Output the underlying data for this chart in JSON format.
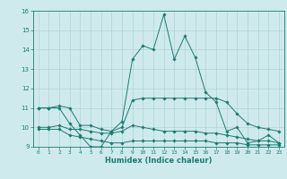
{
  "xlabel": "Humidex (Indice chaleur)",
  "bg_color": "#ceeaec",
  "grid_color": "#afd4d6",
  "line_color": "#1e7a70",
  "xlim": [
    -0.5,
    23.5
  ],
  "ylim": [
    9,
    16
  ],
  "xticks": [
    0,
    1,
    2,
    3,
    4,
    5,
    6,
    7,
    8,
    9,
    10,
    11,
    12,
    13,
    14,
    15,
    16,
    17,
    18,
    19,
    20,
    21,
    22,
    23
  ],
  "yticks": [
    9,
    10,
    11,
    12,
    13,
    14,
    15,
    16
  ],
  "series": [
    {
      "x": [
        0,
        1,
        2,
        3,
        4,
        5,
        6,
        7,
        8,
        9,
        10,
        11,
        12,
        13,
        14,
        15,
        16,
        17,
        18,
        19,
        20,
        21,
        22,
        23
      ],
      "y": [
        11.0,
        11.0,
        11.0,
        10.2,
        9.6,
        9.0,
        9.0,
        9.8,
        10.3,
        13.5,
        14.2,
        14.0,
        15.8,
        13.5,
        14.7,
        13.6,
        11.8,
        11.3,
        9.8,
        10.0,
        9.2,
        9.3,
        9.6,
        9.2
      ]
    },
    {
      "x": [
        0,
        1,
        2,
        3,
        4,
        5,
        6,
        7,
        8,
        9,
        10,
        11,
        12,
        13,
        14,
        15,
        16,
        17,
        18,
        19,
        20,
        21,
        22,
        23
      ],
      "y": [
        11.0,
        11.0,
        11.1,
        11.0,
        10.1,
        10.1,
        9.9,
        9.8,
        10.0,
        11.4,
        11.5,
        11.5,
        11.5,
        11.5,
        11.5,
        11.5,
        11.5,
        11.5,
        11.3,
        10.7,
        10.2,
        10.0,
        9.9,
        9.8
      ]
    },
    {
      "x": [
        0,
        1,
        2,
        3,
        4,
        5,
        6,
        7,
        8,
        9,
        10,
        11,
        12,
        13,
        14,
        15,
        16,
        17,
        18,
        19,
        20,
        21,
        22,
        23
      ],
      "y": [
        10.0,
        10.0,
        10.1,
        9.9,
        9.9,
        9.8,
        9.7,
        9.7,
        9.8,
        10.1,
        10.0,
        9.9,
        9.8,
        9.8,
        9.8,
        9.8,
        9.7,
        9.7,
        9.6,
        9.5,
        9.4,
        9.3,
        9.3,
        9.2
      ]
    },
    {
      "x": [
        0,
        1,
        2,
        3,
        4,
        5,
        6,
        7,
        8,
        9,
        10,
        11,
        12,
        13,
        14,
        15,
        16,
        17,
        18,
        19,
        20,
        21,
        22,
        23
      ],
      "y": [
        9.9,
        9.9,
        9.9,
        9.6,
        9.5,
        9.4,
        9.3,
        9.2,
        9.2,
        9.3,
        9.3,
        9.3,
        9.3,
        9.3,
        9.3,
        9.3,
        9.3,
        9.2,
        9.2,
        9.2,
        9.1,
        9.1,
        9.1,
        9.1
      ]
    }
  ]
}
